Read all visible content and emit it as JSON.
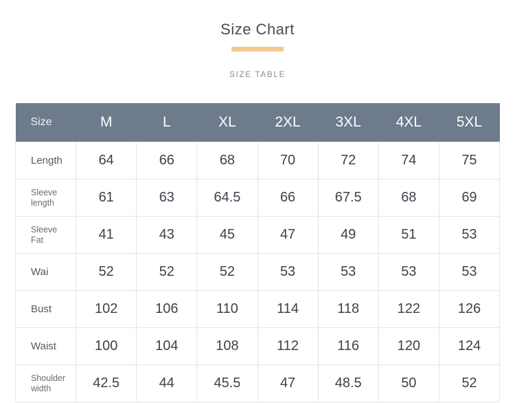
{
  "page": {
    "title": "Size Chart",
    "subtitle": "SIZE TABLE"
  },
  "colors": {
    "header_bg": "#6d7b8c",
    "header_text": "#ffffff",
    "accent_bar": "#f3ca8e",
    "cell_border": "#e4e4e4",
    "value_text": "#3d424a"
  },
  "table": {
    "corner_label": "Size",
    "size_headers": [
      "M",
      "L",
      "XL",
      "2XL",
      "3XL",
      "4XL",
      "5XL"
    ],
    "rows": [
      {
        "label": "Length",
        "values": [
          "64",
          "66",
          "68",
          "70",
          "72",
          "74",
          "75"
        ]
      },
      {
        "label": "Sleeve\nlength",
        "values": [
          "61",
          "63",
          "64.5",
          "66",
          "67.5",
          "68",
          "69"
        ]
      },
      {
        "label": "Sleeve\nFat",
        "values": [
          "41",
          "43",
          "45",
          "47",
          "49",
          "51",
          "53"
        ]
      },
      {
        "label": "Wai",
        "values": [
          "52",
          "52",
          "52",
          "53",
          "53",
          "53",
          "53"
        ]
      },
      {
        "label": "Bust",
        "values": [
          "102",
          "106",
          "110",
          "114",
          "118",
          "122",
          "126"
        ]
      },
      {
        "label": "Waist",
        "values": [
          "100",
          "104",
          "108",
          "112",
          "116",
          "120",
          "124"
        ]
      },
      {
        "label": "Shoulder\nwidth",
        "values": [
          "42.5",
          "44",
          "45.5",
          "47",
          "48.5",
          "50",
          "52"
        ]
      }
    ]
  },
  "chart_data": {
    "type": "table",
    "title": "Size Chart",
    "subtitle": "SIZE TABLE",
    "columns": [
      "Size",
      "M",
      "L",
      "XL",
      "2XL",
      "3XL",
      "4XL",
      "5XL"
    ],
    "rows": [
      [
        "Length",
        64,
        66,
        68,
        70,
        72,
        74,
        75
      ],
      [
        "Sleeve length",
        61,
        63,
        64.5,
        66,
        67.5,
        68,
        69
      ],
      [
        "Sleeve Fat",
        41,
        43,
        45,
        47,
        49,
        51,
        53
      ],
      [
        "Wai",
        52,
        52,
        52,
        53,
        53,
        53,
        53
      ],
      [
        "Bust",
        102,
        106,
        110,
        114,
        118,
        122,
        126
      ],
      [
        "Waist",
        100,
        104,
        108,
        112,
        116,
        120,
        124
      ],
      [
        "Shoulder width",
        42.5,
        44,
        45.5,
        47,
        48.5,
        50,
        52
      ]
    ]
  }
}
